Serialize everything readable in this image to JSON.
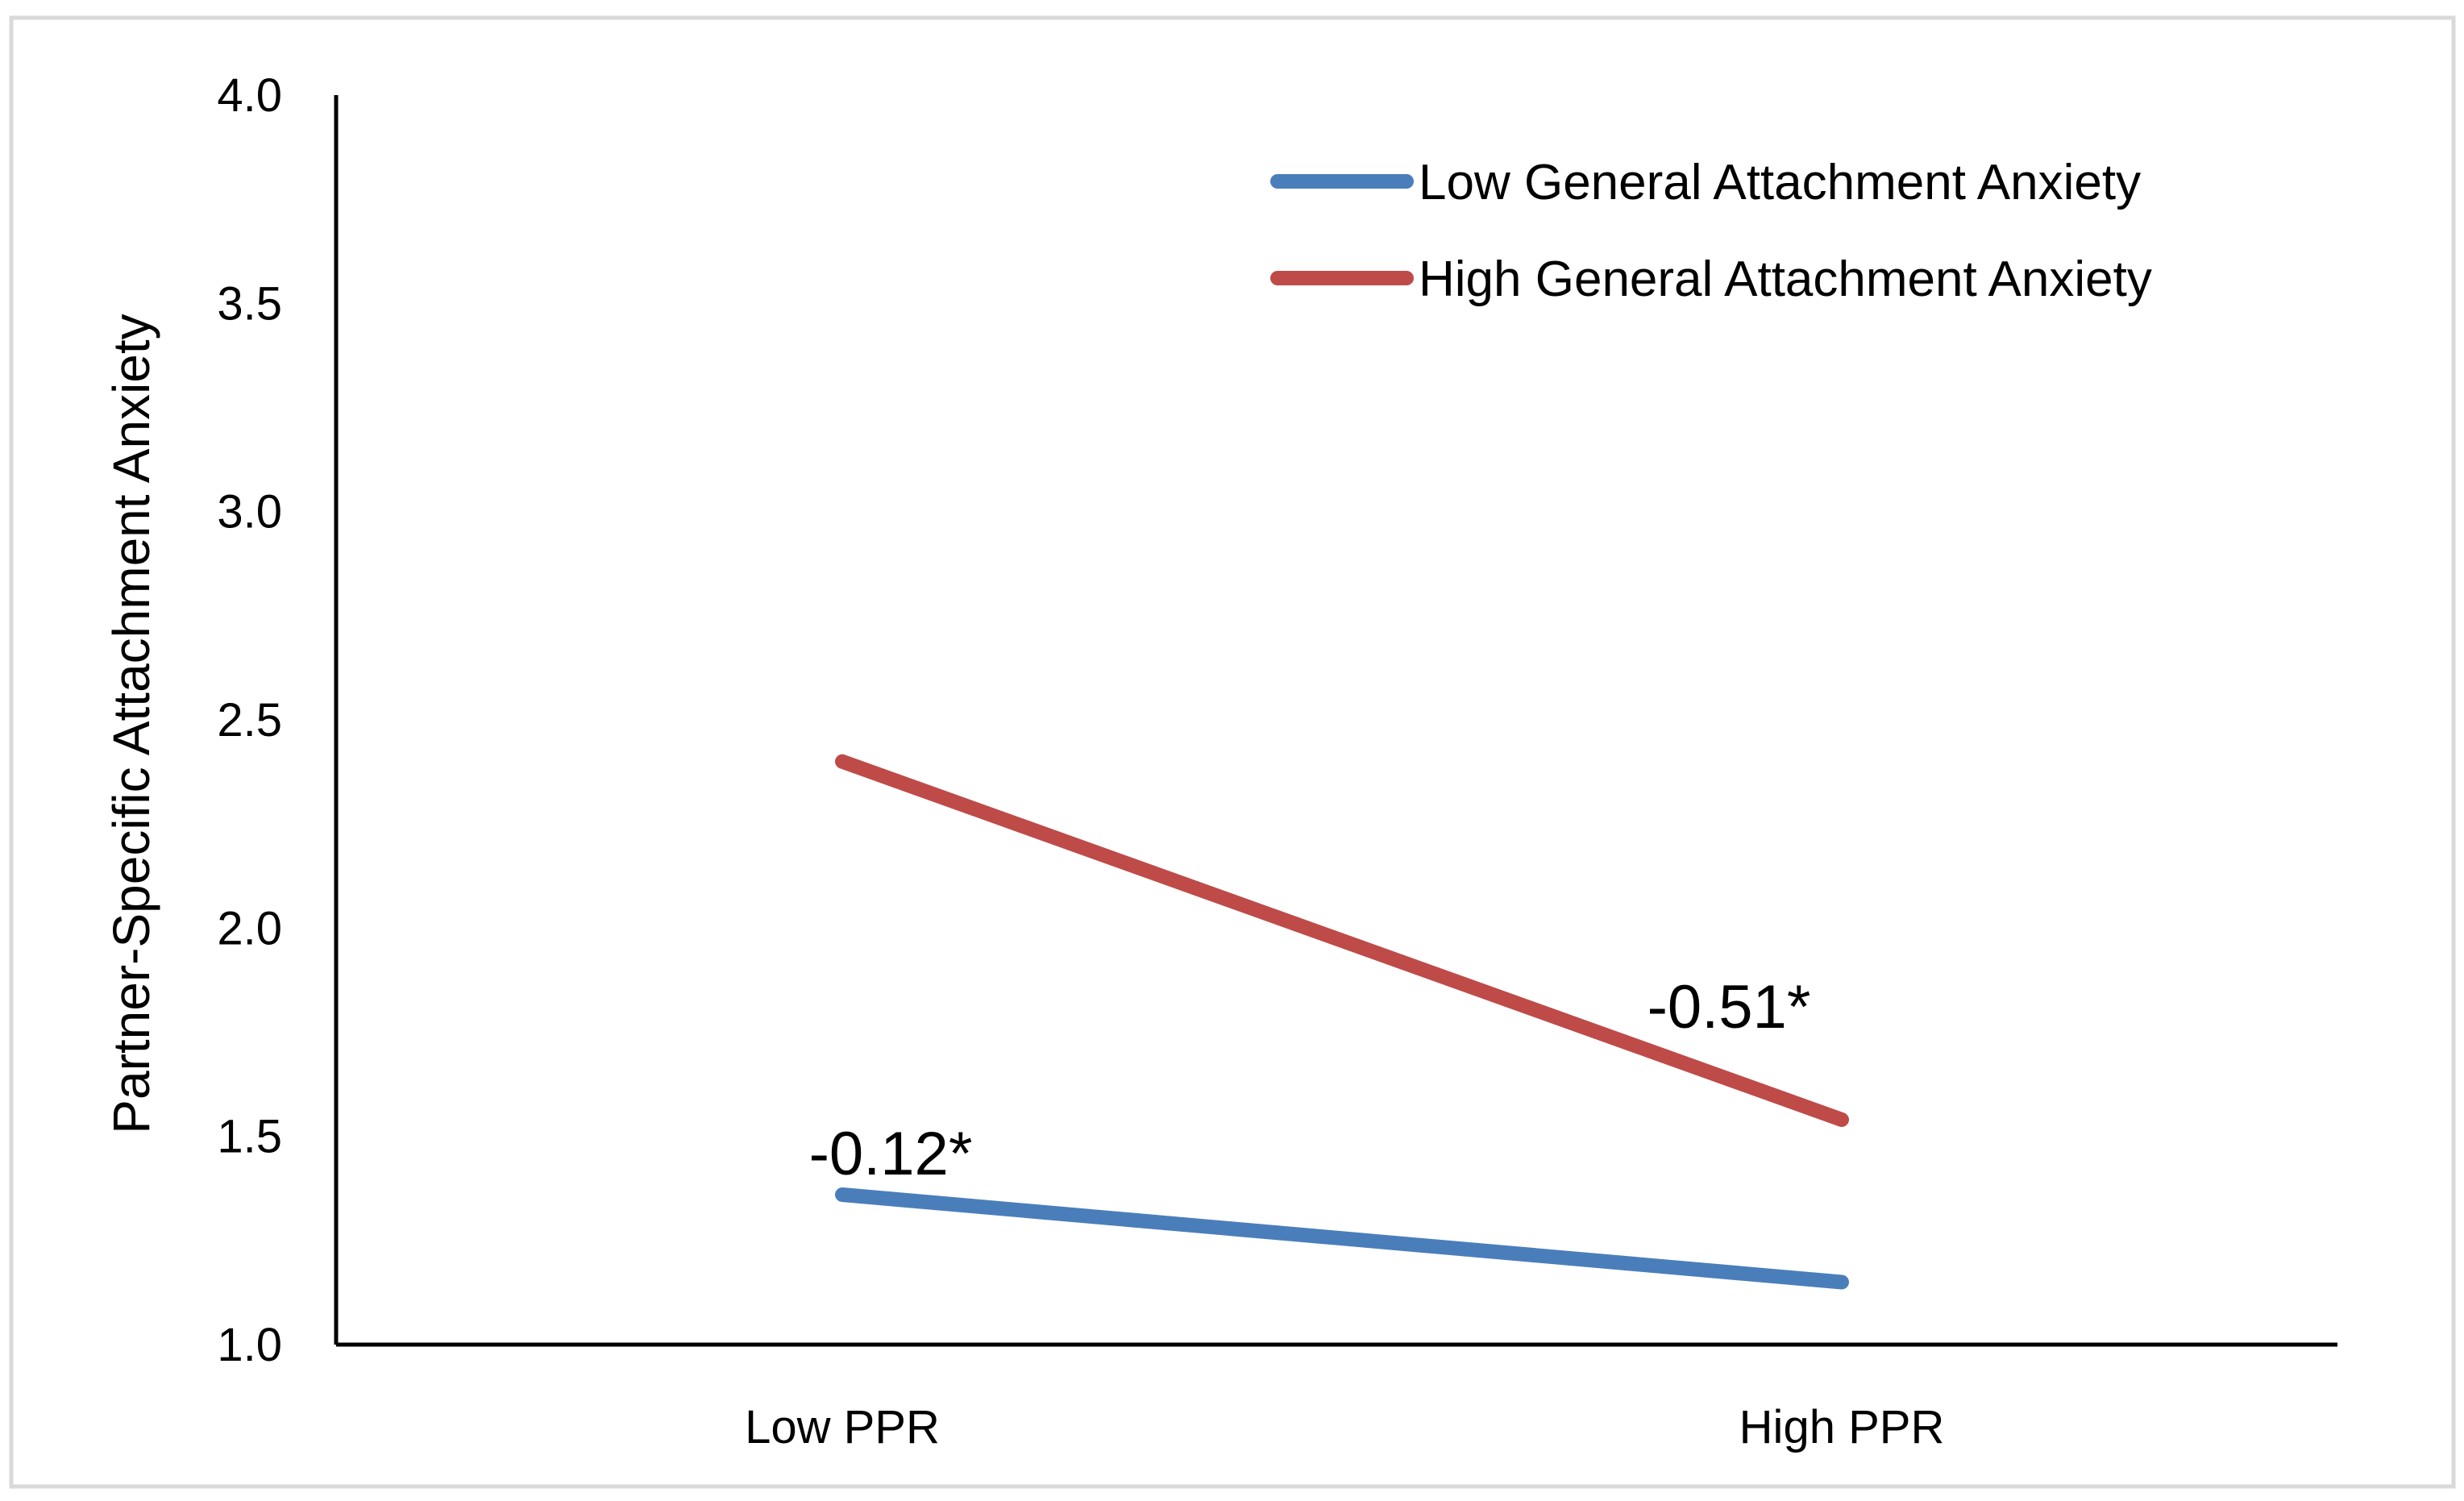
{
  "chart_data": {
    "type": "line",
    "title": "",
    "xlabel": "",
    "ylabel": "Partner-Specific Attachment Anxiety",
    "categories": [
      "Low PPR",
      "High PPR"
    ],
    "ylim": [
      1.0,
      4.0
    ],
    "yticks": [
      "1.0",
      "1.5",
      "2.0",
      "2.5",
      "3.0",
      "3.5",
      "4.0"
    ],
    "grid": false,
    "legend_position": "top-right",
    "series": [
      {
        "name": "Low General Attachment Anxiety",
        "color": "#4a7ebb",
        "values": [
          1.36,
          1.15
        ],
        "annotation": "-0.12*"
      },
      {
        "name": "High General Attachment Anxiety",
        "color": "#be4b48",
        "values": [
          2.4,
          1.54
        ],
        "annotation": "-0.51*"
      }
    ]
  }
}
